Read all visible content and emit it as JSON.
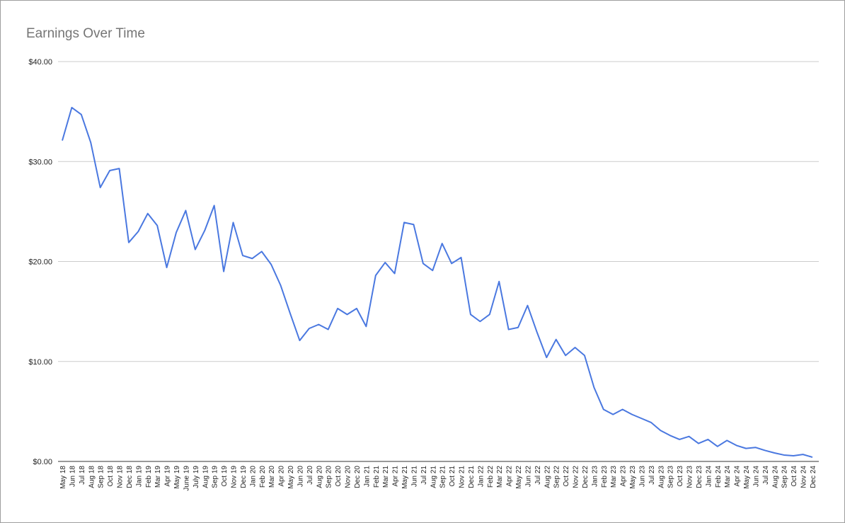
{
  "chart_data": {
    "type": "line",
    "title": "Earnings Over Time",
    "categories": [
      "May 18",
      "Jun 18",
      "Jul 18",
      "Aug 18",
      "Sep 18",
      "Oct 18",
      "Nov 18",
      "Dec 18",
      "Jan 19",
      "Feb 19",
      "Mar 19",
      "Apr 19",
      "May 19",
      "June 19",
      "July 19",
      "Aug 19",
      "Sep 19",
      "Oct 19",
      "Nov 19",
      "Dec 19",
      "Jan 20",
      "Feb 20",
      "Mar 20",
      "Apr 20",
      "May 20",
      "Jun 20",
      "Jul 20",
      "Aug 20",
      "Sep 20",
      "Oct 20",
      "Nov 20",
      "Dec 20",
      "Jan 21",
      "Feb 21",
      "Mar 21",
      "Apr 21",
      "May 21",
      "Jun 21",
      "Jul 21",
      "Aug 21",
      "Sep 21",
      "Oct 21",
      "Nov 21",
      "Dec 21",
      "Jan 22",
      "Feb 22",
      "Mar 22",
      "Apr 22",
      "May 22",
      "Jun 22",
      "Jul 22",
      "Aug 22",
      "Sep 22",
      "Oct 22",
      "Nov 22",
      "Dec 22",
      "Jan 23",
      "Feb 23",
      "Mar 23",
      "Apr 23",
      "May 23",
      "Jun 23",
      "Jul 23",
      "Aug 23",
      "Sep 23",
      "Oct 23",
      "Nov 23",
      "Dec 23",
      "Jan 24",
      "Feb 24",
      "Mar 24",
      "Apr 24",
      "May 24",
      "Jun 24",
      "Jul 24",
      "Aug 24",
      "Sep 24",
      "Oct 24",
      "Nov 24",
      "Dec 24"
    ],
    "values": [
      32.1,
      35.4,
      34.7,
      31.9,
      27.4,
      29.1,
      29.3,
      21.9,
      23.0,
      24.8,
      23.6,
      19.4,
      22.9,
      25.1,
      21.2,
      23.1,
      25.6,
      19.0,
      23.9,
      20.6,
      20.3,
      21.0,
      19.7,
      17.6,
      14.8,
      12.1,
      13.3,
      13.7,
      13.2,
      15.3,
      14.7,
      15.3,
      13.5,
      18.6,
      19.9,
      18.8,
      23.9,
      23.7,
      19.8,
      19.1,
      21.8,
      19.8,
      20.4,
      14.7,
      14.0,
      14.7,
      18.0,
      13.2,
      13.4,
      15.6,
      12.9,
      10.4,
      12.2,
      10.6,
      11.4,
      10.6,
      7.4,
      5.2,
      4.7,
      5.2,
      4.7,
      4.3,
      3.9,
      3.1,
      2.6,
      2.2,
      2.5,
      1.8,
      2.2,
      1.5,
      2.1,
      1.6,
      1.3,
      1.4,
      1.1,
      0.85,
      0.64,
      0.57,
      0.7,
      0.42
    ],
    "color": "#4a78e0",
    "ylim": [
      0,
      40
    ],
    "yticks": [
      {
        "value": 0,
        "label": "$0.00"
      },
      {
        "value": 10,
        "label": "$10.00"
      },
      {
        "value": 20,
        "label": "$20.00"
      },
      {
        "value": 30,
        "label": "$30.00"
      },
      {
        "value": 40,
        "label": "$40.00"
      }
    ],
    "grid": true
  }
}
